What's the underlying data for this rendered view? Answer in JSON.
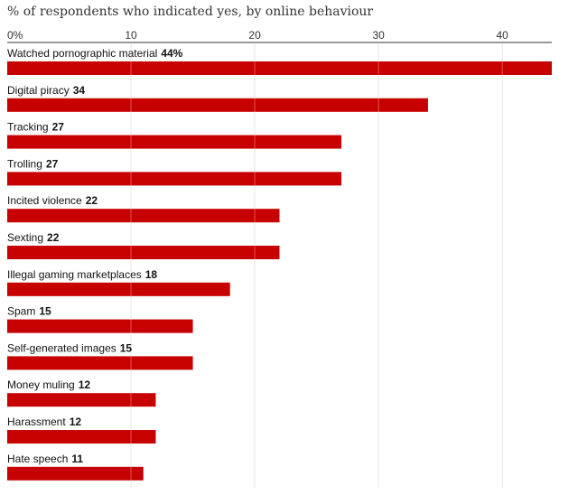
{
  "chart_data": {
    "type": "bar",
    "orientation": "horizontal",
    "title": "% of respondents who indicated yes, by online behaviour",
    "xlabel": "",
    "ylabel": "",
    "xlim": [
      0,
      44
    ],
    "grid": true,
    "ticks": [
      0,
      10,
      20,
      30,
      40
    ],
    "tick_labels": [
      "0%",
      "10",
      "20",
      "30",
      "40"
    ],
    "categories": [
      "Watched pornographic material",
      "Digital piracy",
      "Tracking",
      "Trolling",
      "Incited violence",
      "Sexting",
      "Illegal gaming marketplaces",
      "Spam",
      "Self-generated images",
      "Money muling",
      "Harassment",
      "Hate speech"
    ],
    "values": [
      44,
      34,
      27,
      27,
      22,
      22,
      18,
      15,
      15,
      12,
      12,
      11
    ],
    "value_labels": [
      "44%",
      "34",
      "27",
      "27",
      "22",
      "22",
      "18",
      "15",
      "15",
      "12",
      "12",
      "11"
    ],
    "bar_color": "#c70000",
    "grid_color": "#dcdcdc",
    "axis_color": "#333333"
  }
}
